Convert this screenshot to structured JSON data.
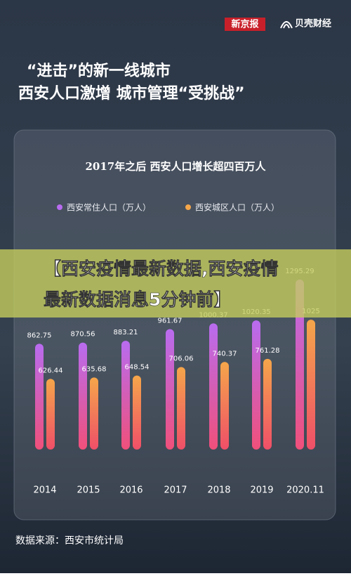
{
  "header": {
    "brand": "新京报",
    "logo": "贝壳财经"
  },
  "headline": [
    "“进击”的新一线城市",
    "西安人口激增 城市管理“受挑战”"
  ],
  "chart_data": {
    "type": "bar",
    "title": "2017年之后 西安人口增长超四百万人",
    "categories": [
      "2014",
      "2015",
      "2016",
      "2017",
      "2018",
      "2019",
      "2020.11"
    ],
    "series": [
      {
        "name": "西安常住人口（万人）",
        "color": "#b86cf0",
        "values": [
          862.75,
          870.56,
          883.21,
          961.67,
          1000.37,
          1020.35,
          1295.29
        ]
      },
      {
        "name": "西安城区人口（万人）",
        "color": "#f5a64a",
        "values": [
          626.44,
          635.68,
          648.54,
          706.06,
          740.37,
          761.28,
          1025
        ]
      }
    ],
    "ylim": [
      150,
      1300
    ]
  },
  "banner": "【西安疫情最新数据,西安疫情最新数据消息5分钟前】",
  "source": "数据来源：西安市统计局"
}
